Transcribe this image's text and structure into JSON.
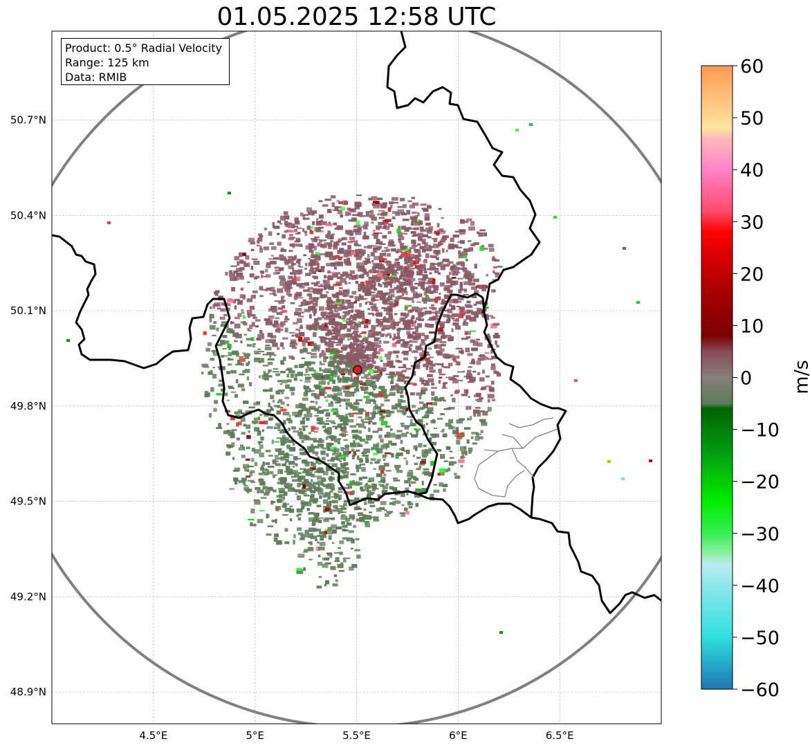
{
  "title": "01.05.2025 12:58 UTC",
  "info": {
    "product": "Product: 0.5° Radial Velocity",
    "range": "Range: 125 km",
    "source": "Data: RMIB"
  },
  "map": {
    "lon_range": [
      4.0,
      7.0
    ],
    "lat_range": [
      48.8,
      50.98
    ],
    "radar_site": {
      "lon": 5.505,
      "lat": 49.914,
      "color": "#e31a1c"
    },
    "range_ring_km": 125,
    "lon_ticks": [
      {
        "value": 4.5,
        "label": "4.5°E"
      },
      {
        "value": 5.0,
        "label": "5°E"
      },
      {
        "value": 5.5,
        "label": "5.5°E"
      },
      {
        "value": 6.0,
        "label": "6°E"
      },
      {
        "value": 6.5,
        "label": "6.5°E"
      }
    ],
    "lat_ticks": [
      {
        "value": 48.9,
        "label": "48.9°N"
      },
      {
        "value": 49.2,
        "label": "49.2°N"
      },
      {
        "value": 49.5,
        "label": "49.5°N"
      },
      {
        "value": 49.8,
        "label": "49.8°N"
      },
      {
        "value": 50.1,
        "label": "50.1°N"
      },
      {
        "value": 50.4,
        "label": "50.4°N"
      },
      {
        "value": 50.7,
        "label": "50.7°N"
      }
    ],
    "grid": true,
    "colors": {
      "outbound": "#8a5a66",
      "inbound": "#5e7c5a",
      "border": "#000000",
      "ring": "#808080"
    }
  },
  "colorbar": {
    "label": "m/s",
    "range": [
      -60,
      60
    ],
    "ticks": [
      {
        "value": 60,
        "label": "60"
      },
      {
        "value": 50,
        "label": "50"
      },
      {
        "value": 40,
        "label": "40"
      },
      {
        "value": 30,
        "label": "30"
      },
      {
        "value": 20,
        "label": "20"
      },
      {
        "value": 10,
        "label": "10"
      },
      {
        "value": 0,
        "label": "0"
      },
      {
        "value": -10,
        "label": "−10"
      },
      {
        "value": -20,
        "label": "−20"
      },
      {
        "value": -30,
        "label": "−30"
      },
      {
        "value": -40,
        "label": "−40"
      },
      {
        "value": -50,
        "label": "−50"
      },
      {
        "value": -60,
        "label": "−60"
      }
    ],
    "stops": [
      {
        "value": -60,
        "color": "#1f77b4"
      },
      {
        "value": -55,
        "color": "#26aacb"
      },
      {
        "value": -50,
        "color": "#2ee0e0"
      },
      {
        "value": -40,
        "color": "#8ee7ea"
      },
      {
        "value": -36,
        "color": "#b8eef0"
      },
      {
        "value": -34,
        "color": "#90eea8"
      },
      {
        "value": -30,
        "color": "#38f050"
      },
      {
        "value": -24,
        "color": "#00ee00"
      },
      {
        "value": -14,
        "color": "#009a10"
      },
      {
        "value": -6,
        "color": "#006400"
      },
      {
        "value": -5,
        "color": "#5e7c5a"
      },
      {
        "value": 0,
        "color": "#867f7a"
      },
      {
        "value": 5,
        "color": "#8a4a58"
      },
      {
        "value": 8,
        "color": "#7a0000"
      },
      {
        "value": 18,
        "color": "#b00000"
      },
      {
        "value": 28,
        "color": "#ff0000"
      },
      {
        "value": 32,
        "color": "#ff4a6a"
      },
      {
        "value": 40,
        "color": "#ff82c8"
      },
      {
        "value": 46,
        "color": "#ffb8b8"
      },
      {
        "value": 48,
        "color": "#ffe4a0"
      },
      {
        "value": 60,
        "color": "#ff9a52"
      }
    ]
  }
}
